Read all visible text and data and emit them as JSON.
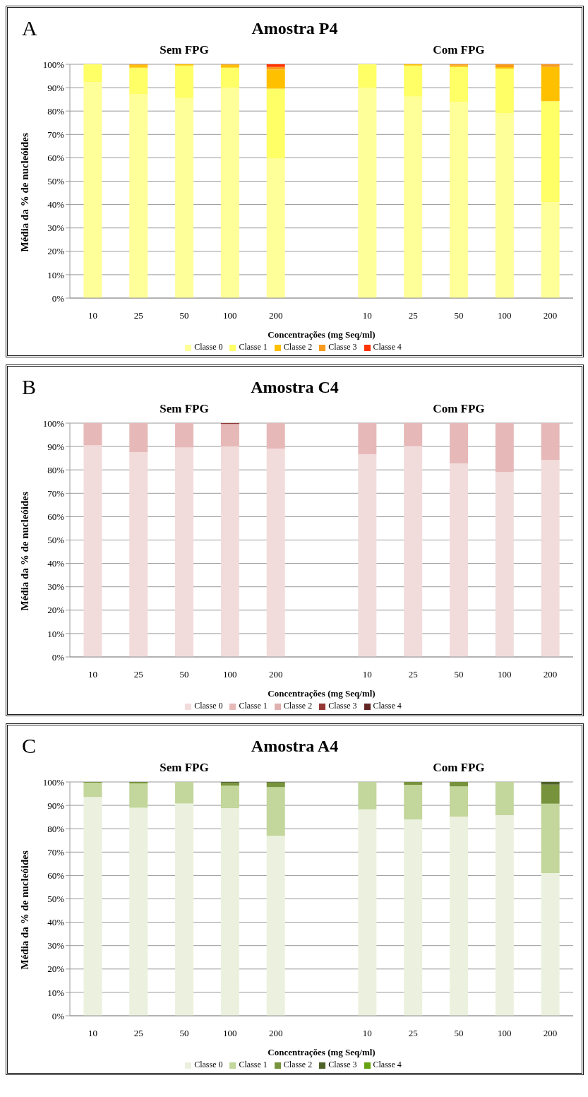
{
  "chart_data": [
    {
      "type": "bar",
      "stacked": true,
      "title": "Amostra P4",
      "annotations": [
        "A",
        "Sem FPG",
        "Com FPG"
      ],
      "xlabel": "Concentrações (mg Seq/ml)",
      "ylabel": "Média da % de nucleóides",
      "categories": [
        "10",
        "25",
        "50",
        "100",
        "200",
        null,
        "10",
        "25",
        "50",
        "100",
        "200"
      ],
      "series": [
        {
          "name": "Classe 0",
          "color": "#ffff99",
          "values": [
            92.4,
            87.3,
            85.6,
            90.0,
            59.7,
            null,
            90.0,
            86.2,
            83.9,
            79.0,
            41.0
          ]
        },
        {
          "name": "Classe 1",
          "color": "#ffff66",
          "values": [
            7.6,
            11.3,
            13.9,
            8.6,
            29.9,
            null,
            10.0,
            13.3,
            15.0,
            19.1,
            43.2
          ]
        },
        {
          "name": "Classe 2",
          "color": "#ffc000",
          "values": [
            0,
            1.2,
            0.5,
            1.2,
            8.2,
            null,
            0,
            0.5,
            0.6,
            0.7,
            14.7
          ]
        },
        {
          "name": "Classe 3",
          "color": "#f79a1e",
          "values": [
            0,
            0.2,
            0,
            0.2,
            1.1,
            null,
            0,
            0,
            0.5,
            1.2,
            1.1
          ]
        },
        {
          "name": "Classe 4",
          "color": "#ff3300",
          "values": [
            0,
            0,
            0,
            0,
            1.1,
            null,
            0,
            0,
            0,
            0,
            0
          ]
        }
      ],
      "ylim": [
        0,
        100
      ],
      "yticks": [
        {
          "value": 0,
          "label": "0%"
        },
        {
          "value": 10,
          "label": "10%"
        },
        {
          "value": 20,
          "label": "20%"
        },
        {
          "value": 30,
          "label": "30%"
        },
        {
          "value": 40,
          "label": "40%"
        },
        {
          "value": 50,
          "label": "50%"
        },
        {
          "value": 60,
          "label": "60%"
        },
        {
          "value": 70,
          "label": "70%"
        },
        {
          "value": 80,
          "label": "80%"
        },
        {
          "value": 90,
          "label": "90%"
        },
        {
          "value": 100,
          "label": "100%"
        }
      ],
      "grid": "y",
      "legend": "bottom"
    },
    {
      "type": "bar",
      "stacked": true,
      "title": "Amostra C4",
      "annotations": [
        "B",
        "Sem FPG",
        "Com FPG"
      ],
      "xlabel": "Concentrações (mg Seq/ml)",
      "ylabel": "Média da % de nucleóides",
      "categories": [
        "10",
        "25",
        "50",
        "100",
        "200",
        null,
        "10",
        "25",
        "50",
        "100",
        "200"
      ],
      "series": [
        {
          "name": "Classe 0",
          "color": "#f2dcdb",
          "values": [
            90.5,
            87.6,
            89.6,
            90.0,
            89.1,
            null,
            86.7,
            90.2,
            82.8,
            79.1,
            84.2
          ]
        },
        {
          "name": "Classe 1",
          "color": "#e6b9b8",
          "values": [
            9.5,
            12.4,
            10.4,
            9.6,
            10.9,
            null,
            13.3,
            9.8,
            17.2,
            20.9,
            15.8
          ]
        },
        {
          "name": "Classe 2",
          "color": "#e0b0ae",
          "values": [
            0,
            0,
            0,
            0,
            0,
            null,
            0,
            0,
            0,
            0,
            0
          ]
        },
        {
          "name": "Classe 3",
          "color": "#953735",
          "values": [
            0,
            0,
            0,
            0.4,
            0,
            null,
            0,
            0,
            0,
            0,
            0
          ]
        },
        {
          "name": "Classe 4",
          "color": "#632523",
          "values": [
            0,
            0,
            0,
            0,
            0,
            null,
            0,
            0,
            0,
            0,
            0
          ]
        }
      ],
      "ylim": [
        0,
        100
      ],
      "yticks": [
        {
          "value": 0,
          "label": "0%"
        },
        {
          "value": 10,
          "label": "10%"
        },
        {
          "value": 20,
          "label": "20%"
        },
        {
          "value": 30,
          "label": "30%"
        },
        {
          "value": 40,
          "label": "40%"
        },
        {
          "value": 50,
          "label": "50%"
        },
        {
          "value": 60,
          "label": "60%"
        },
        {
          "value": 70,
          "label": "70%"
        },
        {
          "value": 80,
          "label": "80%"
        },
        {
          "value": 90,
          "label": "90%"
        },
        {
          "value": 100,
          "label": "100%"
        }
      ],
      "grid": "y",
      "legend": "bottom"
    },
    {
      "type": "bar",
      "stacked": true,
      "title": "Amostra A4",
      "annotations": [
        "C",
        "Sem FPG",
        "Com FPG"
      ],
      "xlabel": "Concentrações (mg Seq/ml)",
      "ylabel": "Média da % de nucleóides",
      "categories": [
        "10",
        "25",
        "50",
        "100",
        "200",
        null,
        "10",
        "25",
        "50",
        "100",
        "200"
      ],
      "series": [
        {
          "name": "Classe 0",
          "color": "#ebf1de",
          "values": [
            93.6,
            89.0,
            90.8,
            88.8,
            77.0,
            null,
            88.3,
            84.0,
            85.2,
            85.8,
            61.0
          ]
        },
        {
          "name": "Classe 1",
          "color": "#c3d69b",
          "values": [
            6.1,
            10.4,
            9.2,
            9.6,
            20.8,
            null,
            11.7,
            14.8,
            12.9,
            14.2,
            29.7
          ]
        },
        {
          "name": "Classe 2",
          "color": "#77933c",
          "values": [
            0.3,
            0.6,
            0,
            1.2,
            2.0,
            null,
            0,
            1.2,
            1.9,
            0,
            8.2
          ]
        },
        {
          "name": "Classe 3",
          "color": "#4f6228",
          "values": [
            0,
            0,
            0,
            0.4,
            0.2,
            null,
            0,
            0,
            0,
            0,
            1.1
          ]
        },
        {
          "name": "Classe 4",
          "color": "#66a10f",
          "values": [
            0,
            0,
            0,
            0,
            0,
            null,
            0,
            0,
            0,
            0,
            0
          ]
        }
      ],
      "ylim": [
        0,
        100
      ],
      "yticks": [
        {
          "value": 0,
          "label": "0%"
        },
        {
          "value": 10,
          "label": "10%"
        },
        {
          "value": 20,
          "label": "20%"
        },
        {
          "value": 30,
          "label": "30%"
        },
        {
          "value": 40,
          "label": "40%"
        },
        {
          "value": 50,
          "label": "50%"
        },
        {
          "value": 60,
          "label": "60%"
        },
        {
          "value": 70,
          "label": "70%"
        },
        {
          "value": 80,
          "label": "80%"
        },
        {
          "value": 90,
          "label": "90%"
        },
        {
          "value": 100,
          "label": "100%"
        }
      ],
      "grid": "y",
      "legend": "bottom"
    }
  ]
}
